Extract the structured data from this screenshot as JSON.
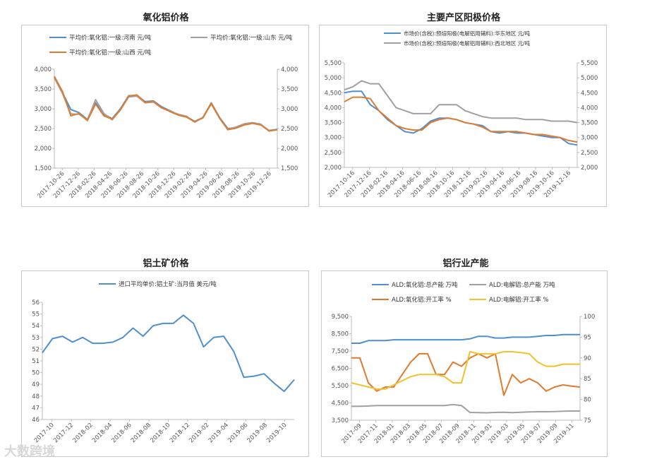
{
  "watermark": "大数跨境",
  "chart_data": [
    {
      "id": "c1",
      "type": "line",
      "title": "氧化铝价格",
      "x_tick_labels": [
        "2017-10-26",
        "2017-12-26",
        "2018-02-26",
        "2018-04-26",
        "2018-06-26",
        "2018-08-26",
        "2018-10-26",
        "2018-12-26",
        "2019-02-26",
        "2019-04-26",
        "2019-06-26",
        "2019-08-26",
        "2019-10-26",
        "2019-12-26"
      ],
      "n_points": 28,
      "ylim": [
        1500,
        4000
      ],
      "y_ticks": [
        1500,
        2000,
        2500,
        3000,
        3500,
        4000
      ],
      "y_tick_labels": [
        "1,500",
        "2,000",
        "2,500",
        "3,000",
        "3,500",
        "4,000"
      ],
      "y2_tick_labels": [
        "1,500",
        "2,000",
        "2,500",
        "3,000",
        "3,500",
        "4,000"
      ],
      "series": [
        {
          "name": "平均价:氧化铝:一级:河南 元/吨",
          "color": "#4f8fd0",
          "values": [
            3800,
            3400,
            2980,
            2900,
            2730,
            3150,
            2860,
            2750,
            3000,
            3330,
            3340,
            3180,
            3200,
            3050,
            2950,
            2850,
            2800,
            2680,
            2780,
            3150,
            2780,
            2500,
            2520,
            2600,
            2640,
            2600,
            2450,
            2480
          ]
        },
        {
          "name": "平均价:氧化铝:一级:山东 元/吨",
          "color": "#a0a0a0",
          "values": [
            3780,
            3380,
            2870,
            2860,
            2720,
            3230,
            2880,
            2720,
            2970,
            3300,
            3320,
            3150,
            3170,
            3020,
            2940,
            2860,
            2810,
            2660,
            2790,
            3120,
            2760,
            2480,
            2540,
            2620,
            2650,
            2610,
            2440,
            2470
          ]
        },
        {
          "name": "平均价:氧化铝:一级:山西 元/吨",
          "color": "#e07b2e",
          "values": [
            3820,
            3430,
            2820,
            2880,
            2700,
            3120,
            2820,
            2740,
            2980,
            3320,
            3350,
            3160,
            3190,
            3030,
            2930,
            2840,
            2790,
            2670,
            2770,
            3140,
            2770,
            2470,
            2510,
            2590,
            2630,
            2590,
            2440,
            2470
          ]
        }
      ]
    },
    {
      "id": "c2",
      "type": "line",
      "title": "主要产区阳极价格",
      "x_tick_labels": [
        "2017-10-16",
        "2017-12-16",
        "2018-02-16",
        "2018-04-16",
        "2018-06-16",
        "2018-08-16",
        "2018-10-16",
        "2018-12-16",
        "2019-02-16",
        "2019-04-16",
        "2019-06-16",
        "2019-08-16",
        "2019-10-16",
        "2019-12-16"
      ],
      "n_points": 28,
      "ylim": [
        2000,
        5500
      ],
      "y_ticks": [
        2000,
        2500,
        3000,
        3500,
        4000,
        4500,
        5000,
        5500
      ],
      "y_tick_labels": [
        "2,000",
        "2,500",
        "3,000",
        "3,500",
        "4,000",
        "4,500",
        "5,000",
        "5,500"
      ],
      "y2_tick_labels": [
        "2,000",
        "2,500",
        "3,000",
        "3,500",
        "4,000",
        "4,500",
        "5,000",
        "5,500"
      ],
      "series": [
        {
          "name": "市场价(含税):预焙阳极(电解铝用辅料):华东地区 元/吨",
          "color": "#4f8fd0",
          "values": [
            4500,
            4550,
            4550,
            4100,
            3900,
            3600,
            3400,
            3200,
            3150,
            3300,
            3550,
            3650,
            3650,
            3600,
            3500,
            3450,
            3400,
            3200,
            3150,
            3200,
            3150,
            3150,
            3100,
            3050,
            3000,
            3000,
            2800,
            2750
          ]
        },
        {
          "name": "市场价(含税):预焙阳极(电解铝用辅料):西北地区 元/吨",
          "color": "#a0a0a0",
          "values": [
            4600,
            4700,
            4900,
            4800,
            4800,
            4400,
            4000,
            3900,
            3800,
            3800,
            3800,
            4100,
            4100,
            4100,
            3900,
            3800,
            3700,
            3650,
            3650,
            3650,
            3650,
            3600,
            3600,
            3600,
            3550,
            3550,
            3550,
            3500
          ]
        },
        {
          "name": "",
          "color": "#e07b2e",
          "values": [
            4200,
            4350,
            4350,
            4300,
            3900,
            3650,
            3400,
            3300,
            3250,
            3250,
            3500,
            3600,
            3650,
            3600,
            3500,
            3450,
            3350,
            3200,
            3200,
            3200,
            3200,
            3150,
            3100,
            3100,
            3050,
            3000,
            2900,
            2850
          ]
        }
      ]
    },
    {
      "id": "c3",
      "type": "line",
      "title": "铝土矿价格",
      "x_tick_labels": [
        "2017-10",
        "2017-12",
        "2018-02",
        "2018-04",
        "2018-06",
        "2018-08",
        "2018-10",
        "2018-12",
        "2019-02",
        "2019-04",
        "2019-06",
        "2019-08",
        "2019-10"
      ],
      "x_tick_every": 2,
      "ylim": [
        46,
        56
      ],
      "y_ticks": [
        46,
        47,
        48,
        49,
        50,
        51,
        52,
        53,
        54,
        55,
        56
      ],
      "y_tick_labels": [
        "46",
        "47",
        "48",
        "49",
        "50",
        "51",
        "52",
        "53",
        "54",
        "55",
        "56"
      ],
      "series": [
        {
          "name": "进口平均单价:铝土矿:当月值 美元/吨",
          "color": "#4f8fd0",
          "values": [
            51.7,
            52.9,
            53.1,
            52.6,
            53.0,
            52.5,
            52.5,
            52.6,
            53.0,
            53.8,
            53.1,
            54.0,
            54.2,
            54.2,
            54.9,
            54.2,
            52.2,
            53.0,
            53.1,
            51.8,
            49.6,
            49.7,
            49.9,
            49.1,
            48.4,
            49.4
          ]
        }
      ]
    },
    {
      "id": "c4",
      "type": "line",
      "title": "铝行业产能",
      "x_tick_labels": [
        "2017-09",
        "2017-11",
        "2018-01",
        "2018-03",
        "2018-05",
        "2018-07",
        "2018-09",
        "2018-11",
        "2019-01",
        "2019-03",
        "2019-05",
        "2019-07",
        "2019-09",
        "2019-11"
      ],
      "x_tick_every": 2,
      "ylim": [
        3500,
        9500
      ],
      "y_ticks": [
        3500,
        4500,
        5500,
        6500,
        7500,
        8500,
        9500
      ],
      "y_tick_labels": [
        "3,500",
        "4,500",
        "5,500",
        "6,500",
        "7,500",
        "8,500",
        "9,500"
      ],
      "y2lim": [
        75,
        100
      ],
      "y2_ticks": [
        75,
        80,
        85,
        90,
        95,
        100
      ],
      "y2_tick_labels": [
        "75",
        "80",
        "85",
        "90",
        "95",
        "100"
      ],
      "series": [
        {
          "name": "ALD:氧化铝:总产能 万吨",
          "color": "#4f8fd0",
          "axis": "left",
          "values": [
            7950,
            7950,
            8100,
            8100,
            8100,
            8150,
            8150,
            8150,
            8150,
            8150,
            8150,
            8150,
            8150,
            8150,
            8200,
            8350,
            8350,
            8250,
            8250,
            8300,
            8300,
            8300,
            8350,
            8400,
            8400,
            8450,
            8450,
            8450
          ]
        },
        {
          "name": "ALD:电解铝:总产能 万吨",
          "color": "#a0a0a0",
          "axis": "left",
          "values": [
            4300,
            4310,
            4320,
            4350,
            4350,
            4350,
            4350,
            4350,
            4350,
            4350,
            4350,
            4350,
            4400,
            4350,
            3950,
            3940,
            3930,
            3950,
            3960,
            3940,
            3960,
            3980,
            3990,
            3990,
            4000,
            4020,
            4030,
            4030
          ]
        },
        {
          "name": "ALD:氧化铝:开工率 %",
          "color": "#e07b2e",
          "axis": "right",
          "values": [
            90,
            90,
            84,
            82,
            83,
            83,
            86,
            89,
            91,
            91,
            86,
            86,
            89,
            88,
            90,
            91,
            90,
            91,
            81,
            86,
            84,
            85,
            84,
            82,
            83,
            83.5,
            83.2,
            83
          ]
        },
        {
          "name": "ALD:电解铝:开工率 %",
          "color": "#f2c12e",
          "axis": "right",
          "values": [
            84,
            83.5,
            83,
            82.5,
            82.5,
            83.5,
            84.5,
            85.5,
            86,
            86,
            86,
            85.5,
            84,
            84,
            91.5,
            91,
            91,
            91,
            91.5,
            91.5,
            91.3,
            91,
            89,
            88,
            88,
            88.5,
            88.5,
            88.5
          ]
        }
      ]
    }
  ]
}
